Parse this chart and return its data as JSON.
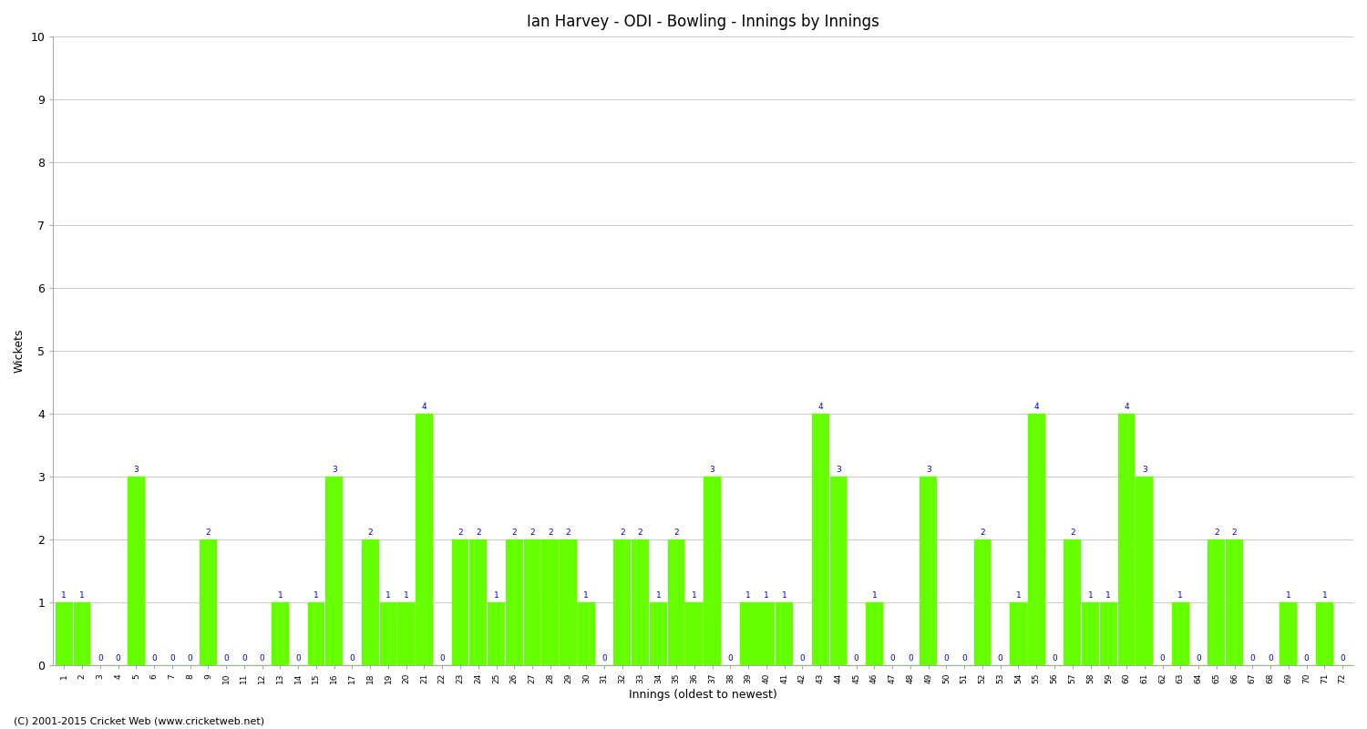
{
  "title": "Ian Harvey - ODI - Bowling - Innings by Innings",
  "xlabel": "Innings (oldest to newest)",
  "ylabel": "Wickets",
  "ylim": [
    0,
    10
  ],
  "yticks": [
    0,
    1,
    2,
    3,
    4,
    5,
    6,
    7,
    8,
    9,
    10
  ],
  "bar_color": "#66ff00",
  "bar_edge_color": "#66ff00",
  "label_color": "#0000cc",
  "background_color": "#ffffff",
  "plot_bg_color": "#ffffff",
  "grid_color": "#cccccc",
  "footer_text": "(C) 2001-2015 Cricket Web (www.cricketweb.net)",
  "categories": [
    "1",
    "2",
    "3",
    "4",
    "5",
    "6",
    "7",
    "8",
    "9",
    "10",
    "11",
    "12",
    "13",
    "14",
    "15",
    "16",
    "17",
    "18",
    "19",
    "20",
    "21",
    "22",
    "23",
    "24",
    "25",
    "26",
    "27",
    "28",
    "29",
    "30",
    "31",
    "32",
    "33",
    "34",
    "35",
    "36",
    "37",
    "38",
    "39",
    "40",
    "41",
    "42",
    "43",
    "44",
    "45",
    "46",
    "47",
    "48",
    "49",
    "50",
    "51",
    "52",
    "53",
    "54",
    "55",
    "56",
    "57",
    "58",
    "59",
    "60",
    "61",
    "62",
    "63",
    "64",
    "65",
    "66",
    "67",
    "68",
    "69",
    "70",
    "71",
    "72"
  ],
  "values": [
    1,
    1,
    0,
    0,
    3,
    0,
    0,
    0,
    2,
    0,
    0,
    0,
    1,
    0,
    1,
    3,
    0,
    2,
    1,
    1,
    4,
    0,
    2,
    2,
    1,
    2,
    2,
    2,
    2,
    1,
    0,
    2,
    2,
    1,
    2,
    1,
    3,
    0,
    1,
    1,
    1,
    0,
    4,
    3,
    0,
    1,
    0,
    0,
    3,
    0,
    0,
    2,
    0,
    1,
    4,
    0,
    2,
    1,
    1,
    4,
    3,
    0,
    1,
    0,
    2,
    2,
    0,
    0,
    1,
    0,
    1,
    0
  ]
}
